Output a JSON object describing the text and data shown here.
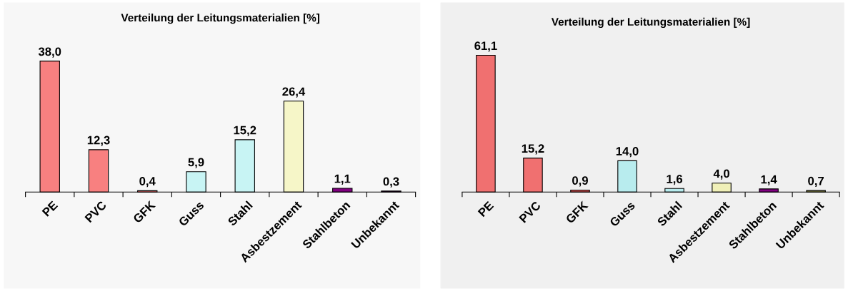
{
  "chart_data": [
    {
      "type": "bar",
      "title": "Verteilung der Leitungsmaterialien [%]",
      "categories": [
        "PE",
        "PVC",
        "GFK",
        "Guss",
        "Stahl",
        "Asbestzement",
        "Stahlbeton",
        "Unbekannt"
      ],
      "values": [
        38.0,
        12.3,
        0.4,
        5.9,
        15.2,
        26.4,
        1.1,
        0.3
      ],
      "value_labels": [
        "38,0",
        "12,3",
        "0,4",
        "5,9",
        "15,2",
        "26,4",
        "1,1",
        "0,3"
      ],
      "colors": [
        "#f88080",
        "#f88080",
        "#e06060",
        "#c8f4f4",
        "#c8f4f4",
        "#f6f6c8",
        "#800080",
        "#400040"
      ],
      "tick_labels": "x",
      "grid": false,
      "legend": false
    },
    {
      "type": "bar",
      "title": "Verteilung der Leitungsmaterialien [%]",
      "categories": [
        "PE",
        "PVC",
        "GFK",
        "Guss",
        "Stahl",
        "Asbestzement",
        "Stahlbeton",
        "Unbekannt"
      ],
      "values": [
        61.1,
        15.2,
        0.9,
        14.0,
        1.6,
        4.0,
        1.4,
        0.7
      ],
      "value_labels": [
        "61,1",
        "15,2",
        "0,9",
        "14,0",
        "1,6",
        "4,0",
        "1,4",
        "0,7"
      ],
      "colors": [
        "#f07070",
        "#f07070",
        "#d05050",
        "#b8ecee",
        "#b8ecee",
        "#f0f0b8",
        "#800080",
        "#808040"
      ],
      "tick_labels": "x",
      "grid": false,
      "legend": false
    }
  ]
}
